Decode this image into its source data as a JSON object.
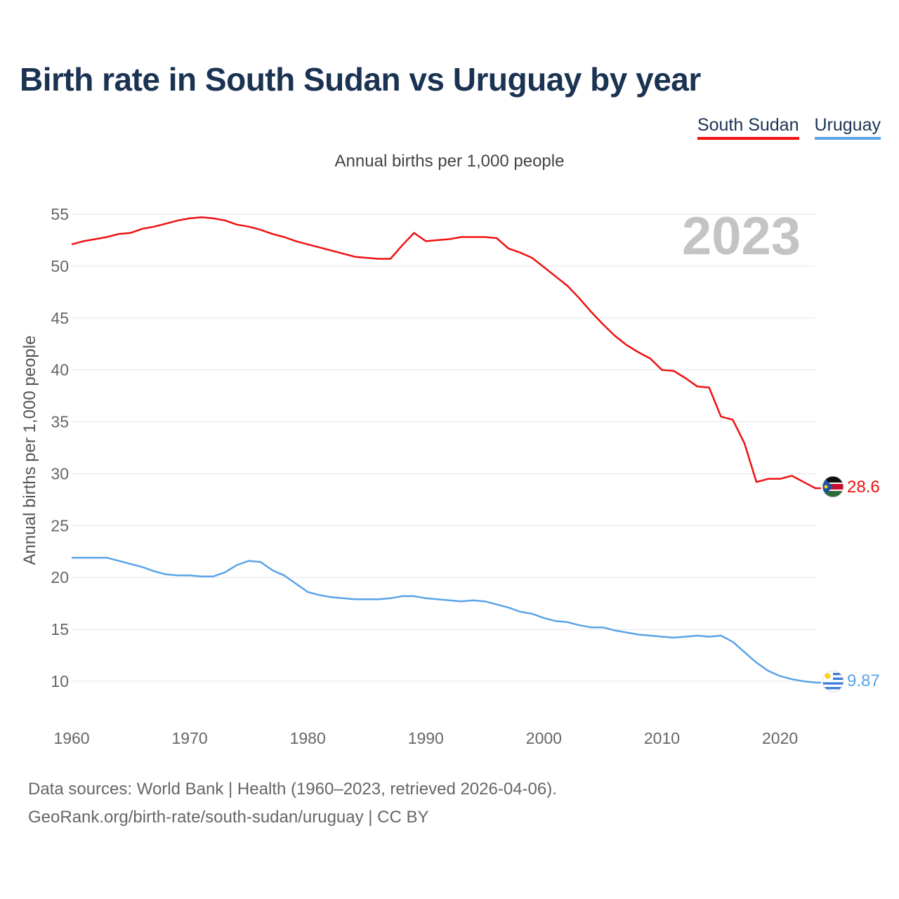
{
  "title": "Birth rate in South Sudan vs Uruguay by year",
  "subtitle": "Annual births per 1,000 people",
  "legend": {
    "south_sudan": "South Sudan",
    "uruguay": "Uruguay"
  },
  "source": {
    "line1": "Data sources: World Bank | Health (1960–2023, retrieved 2026-04-06).",
    "line2": "GeoRank.org/birth-rate/south-sudan/uruguay | CC BY"
  },
  "colors": {
    "south_sudan": "#ee1111",
    "uruguay": "#5ba3e6",
    "title": "#1b3353",
    "grid": "#e6e6e6"
  },
  "chart_data": {
    "type": "line",
    "title": "Birth rate in South Sudan vs Uruguay by year",
    "ylabel": "Annual births per 1,000 people",
    "xlabel": "",
    "year_label": "2023",
    "xlim": [
      1960,
      2023
    ],
    "ylim": [
      7,
      56
    ],
    "x_ticks": [
      1960,
      1970,
      1980,
      1990,
      2000,
      2010,
      2020
    ],
    "y_ticks": [
      10,
      15,
      20,
      25,
      30,
      35,
      40,
      45,
      50,
      55
    ],
    "grid": true,
    "legend_position": "top-right",
    "x": [
      1960,
      1961,
      1962,
      1963,
      1964,
      1965,
      1966,
      1967,
      1968,
      1969,
      1970,
      1971,
      1972,
      1973,
      1974,
      1975,
      1976,
      1977,
      1978,
      1979,
      1980,
      1981,
      1982,
      1983,
      1984,
      1985,
      1986,
      1987,
      1988,
      1989,
      1990,
      1991,
      1992,
      1993,
      1994,
      1995,
      1996,
      1997,
      1998,
      1999,
      2000,
      2001,
      2002,
      2003,
      2004,
      2005,
      2006,
      2007,
      2008,
      2009,
      2010,
      2011,
      2012,
      2013,
      2014,
      2015,
      2016,
      2017,
      2018,
      2019,
      2020,
      2021,
      2022,
      2023
    ],
    "series": [
      {
        "name": "South Sudan",
        "end_label": "28.6",
        "values": [
          52.1,
          52.4,
          52.6,
          52.8,
          53.1,
          53.2,
          53.6,
          53.8,
          54.1,
          54.4,
          54.6,
          54.7,
          54.6,
          54.4,
          54.0,
          53.8,
          53.5,
          53.1,
          52.8,
          52.4,
          52.1,
          51.8,
          51.5,
          51.2,
          50.9,
          50.8,
          50.7,
          50.7,
          52.0,
          53.2,
          52.4,
          52.5,
          52.6,
          52.8,
          52.8,
          52.8,
          52.7,
          51.7,
          51.3,
          50.8,
          49.9,
          49.0,
          48.1,
          46.9,
          45.6,
          44.4,
          43.3,
          42.4,
          41.7,
          41.1,
          40.0,
          39.9,
          39.2,
          38.4,
          38.3,
          35.5,
          35.2,
          32.9,
          29.2,
          29.5,
          29.5,
          29.8,
          29.2,
          28.6
        ]
      },
      {
        "name": "Uruguay",
        "end_label": "9.87",
        "values": [
          21.9,
          21.9,
          21.9,
          21.9,
          21.6,
          21.3,
          21.0,
          20.6,
          20.3,
          20.2,
          20.2,
          20.1,
          20.1,
          20.5,
          21.2,
          21.6,
          21.5,
          20.7,
          20.2,
          19.4,
          18.6,
          18.3,
          18.1,
          18.0,
          17.9,
          17.9,
          17.9,
          18.0,
          18.2,
          18.2,
          18.0,
          17.9,
          17.8,
          17.7,
          17.8,
          17.7,
          17.4,
          17.1,
          16.7,
          16.5,
          16.1,
          15.8,
          15.7,
          15.4,
          15.2,
          15.2,
          14.9,
          14.7,
          14.5,
          14.4,
          14.3,
          14.2,
          14.3,
          14.4,
          14.3,
          14.4,
          13.8,
          12.8,
          11.8,
          11.0,
          10.5,
          10.2,
          10.0,
          9.87
        ]
      }
    ]
  }
}
